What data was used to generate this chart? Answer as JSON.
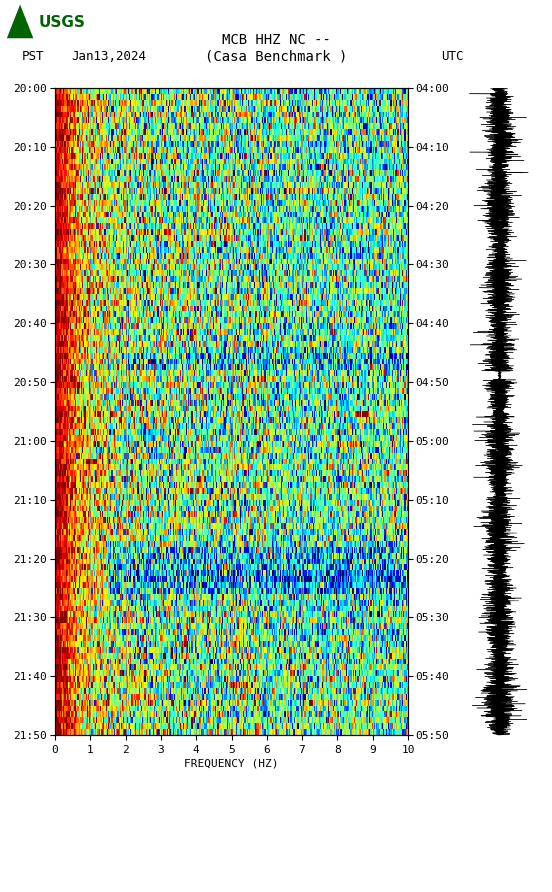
{
  "title_line1": "MCB HHZ NC --",
  "title_line2": "(Casa Benchmark )",
  "left_label_tz": "PST",
  "left_label_date": "Jan13,2024",
  "right_label": "UTC",
  "freq_label": "FREQUENCY (HZ)",
  "freq_min": 0,
  "freq_max": 10,
  "freq_ticks": [
    0,
    1,
    2,
    3,
    4,
    5,
    6,
    7,
    8,
    9,
    10
  ],
  "time_left_labels": [
    "20:00",
    "20:10",
    "20:20",
    "20:30",
    "20:40",
    "20:50",
    "21:00",
    "21:10",
    "21:20",
    "21:30",
    "21:40",
    "21:50"
  ],
  "time_right_labels": [
    "04:00",
    "04:10",
    "04:20",
    "04:30",
    "04:40",
    "04:50",
    "05:00",
    "05:10",
    "05:20",
    "05:30",
    "05:40",
    "05:50"
  ],
  "n_time_bins": 110,
  "n_freq_bins": 300,
  "spectrogram_cmap": "jet",
  "background_color": "#ffffff",
  "spectrogram_vmin": 0.0,
  "spectrogram_vmax": 1.0,
  "vertical_lines_freq": [
    1.0,
    2.0,
    3.0,
    4.0,
    5.0,
    6.0,
    7.0,
    8.0,
    9.0
  ],
  "waveform_color": "#000000",
  "usgs_green": "#006400",
  "figsize": [
    5.52,
    8.92
  ],
  "dpi": 100
}
